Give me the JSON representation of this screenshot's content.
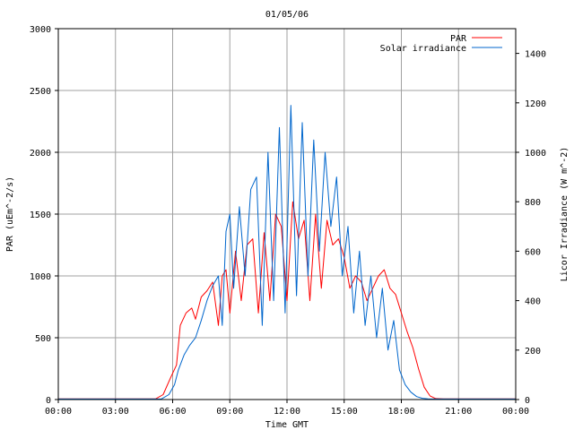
{
  "chart_data": {
    "type": "line",
    "title": "01/05/06",
    "xlabel": "Time GMT",
    "ylabel": "PAR (uEm^-2/s)",
    "y2label": "Licor Irradiance (W m^-2)",
    "xlim": [
      0,
      24
    ],
    "ylim": [
      0,
      3000
    ],
    "y2lim": [
      0,
      1500
    ],
    "x_ticks": [
      0,
      3,
      6,
      9,
      12,
      15,
      18,
      21,
      24
    ],
    "x_tick_labels": [
      "00:00",
      "03:00",
      "06:00",
      "09:00",
      "12:00",
      "15:00",
      "18:00",
      "21:00",
      "00:00"
    ],
    "y_ticks": [
      0,
      500,
      1000,
      1500,
      2000,
      2500,
      3000
    ],
    "y_tick_labels": [
      "0",
      "500",
      "1000",
      "1500",
      "2000",
      "2500",
      "3000"
    ],
    "y2_ticks": [
      0,
      200,
      400,
      600,
      800,
      1000,
      1200,
      1400
    ],
    "y2_tick_labels": [
      "0",
      "200",
      "400",
      "600",
      "800",
      "1000",
      "1200",
      "1400"
    ],
    "grid": true,
    "legend_position": "top-right",
    "series": [
      {
        "name": "PAR",
        "axis": "left",
        "color": "#ff0000",
        "x": [
          0,
          5.1,
          5.5,
          5.9,
          6.2,
          6.4,
          6.7,
          7.0,
          7.2,
          7.5,
          7.8,
          8.1,
          8.4,
          8.6,
          8.8,
          9.0,
          9.3,
          9.6,
          9.9,
          10.2,
          10.5,
          10.8,
          11.1,
          11.4,
          11.7,
          12.0,
          12.3,
          12.6,
          12.9,
          13.2,
          13.5,
          13.8,
          14.1,
          14.4,
          14.7,
          15.0,
          15.3,
          15.6,
          15.9,
          16.2,
          16.5,
          16.8,
          17.1,
          17.4,
          17.7,
          18.0,
          18.3,
          18.6,
          18.9,
          19.2,
          19.5,
          19.8,
          20.2,
          24
        ],
        "values": [
          5,
          5,
          40,
          180,
          280,
          600,
          700,
          740,
          650,
          830,
          880,
          950,
          600,
          1000,
          1050,
          700,
          1200,
          800,
          1250,
          1300,
          700,
          1350,
          800,
          1500,
          1400,
          800,
          1600,
          1300,
          1450,
          800,
          1500,
          900,
          1450,
          1250,
          1300,
          1150,
          900,
          1000,
          950,
          800,
          900,
          1000,
          1050,
          900,
          850,
          700,
          550,
          420,
          250,
          100,
          30,
          8,
          5,
          5
        ]
      },
      {
        "name": "Solar irradiance",
        "axis": "right",
        "color": "#0066cc",
        "x": [
          0,
          5.4,
          5.8,
          6.1,
          6.3,
          6.6,
          6.9,
          7.2,
          7.5,
          7.8,
          8.1,
          8.4,
          8.6,
          8.8,
          9.0,
          9.2,
          9.5,
          9.8,
          10.1,
          10.4,
          10.7,
          11.0,
          11.3,
          11.6,
          11.9,
          12.2,
          12.5,
          12.8,
          13.1,
          13.4,
          13.7,
          14.0,
          14.3,
          14.6,
          14.9,
          15.2,
          15.5,
          15.8,
          16.1,
          16.4,
          16.7,
          17.0,
          17.3,
          17.6,
          17.9,
          18.2,
          18.5,
          18.8,
          19.1,
          19.4,
          19.8,
          24
        ],
        "values": [
          2,
          2,
          20,
          60,
          120,
          180,
          220,
          250,
          320,
          400,
          460,
          500,
          300,
          680,
          750,
          450,
          780,
          500,
          850,
          900,
          300,
          1000,
          400,
          1100,
          350,
          1190,
          420,
          1120,
          500,
          1050,
          600,
          1000,
          700,
          900,
          500,
          700,
          350,
          600,
          300,
          500,
          250,
          450,
          200,
          320,
          120,
          60,
          30,
          12,
          5,
          3,
          2,
          2
        ]
      }
    ]
  }
}
